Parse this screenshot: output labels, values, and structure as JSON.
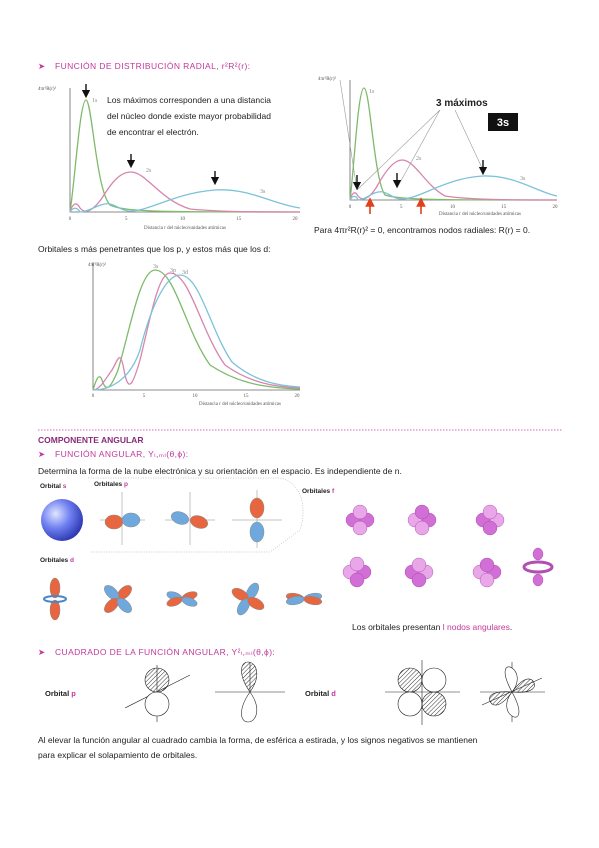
{
  "section_radial": {
    "heading": "FUNCIÓN DE DISTRIBUCIÓN RADIAL, r²R²(r):",
    "description": [
      "Los máximos corresponden a una distancia",
      "del núcleo donde existe mayor probabilidad",
      "de encontrar el electrón."
    ],
    "node_note": "Para 4πr²R(r)² = 0, encontramos nodos radiales: R(r) = 0.",
    "penetration_note": "Orbitales s más penetrantes que los p, y estos más que los d:"
  },
  "figure_left": {
    "y_label": "4πr²R(r)²",
    "curves": [
      "1s",
      "2s",
      "3s"
    ],
    "x_label": "Distancia r del núcleo/unidades atómicas",
    "x_ticks": [
      0,
      5,
      10,
      15,
      20
    ]
  },
  "figure_right": {
    "y_label": "4πr²R(r)²",
    "curves": [
      "1s",
      "2s",
      "3s"
    ],
    "annotation": "3 máximos",
    "badge": "3s",
    "x_label": "Distancia r del núcleo/unidades atómicas",
    "x_ticks": [
      0,
      5,
      10,
      15,
      20
    ]
  },
  "figure_bottom": {
    "y_label": "4πr²R(r)²",
    "curves": [
      "3d",
      "3p",
      "3s"
    ],
    "x_label": "Distancia r del núcleo/unidades atómicas",
    "x_ticks": [
      0,
      5,
      10,
      15,
      20
    ]
  },
  "section_angular": {
    "title": "COMPONENTE ANGULAR",
    "heading": "FUNCIÓN ANGULAR, Yₗ,ₘₗ(θ,ϕ):",
    "description": "Determina la forma de la nube electrónica y su orientación en el espacio. Es independiente de n.",
    "orbital_s": [
      "Orbital",
      "s"
    ],
    "orbitals_p": [
      "Orbitales",
      "p"
    ],
    "orbitals_d": [
      "Orbitales",
      "d"
    ],
    "orbitals_f": [
      "Orbitales",
      "f"
    ],
    "nodes_note": [
      "Los orbitales presentan",
      "l nodos angulares",
      "."
    ]
  },
  "section_square": {
    "heading": "CUADRADO DE LA FUNCIÓN ANGULAR, Y²ₗ,ₘₗ(θ,ϕ):",
    "orbital_p": [
      "Orbital",
      "p"
    ],
    "orbital_d": [
      "Orbital",
      "d"
    ],
    "description": [
      "Al elevar la función angular al cuadrado cambia la forma, de esférica a estirada, y los signos negativos se mantienen",
      "para explicar el solapamiento de orbitales."
    ]
  }
}
